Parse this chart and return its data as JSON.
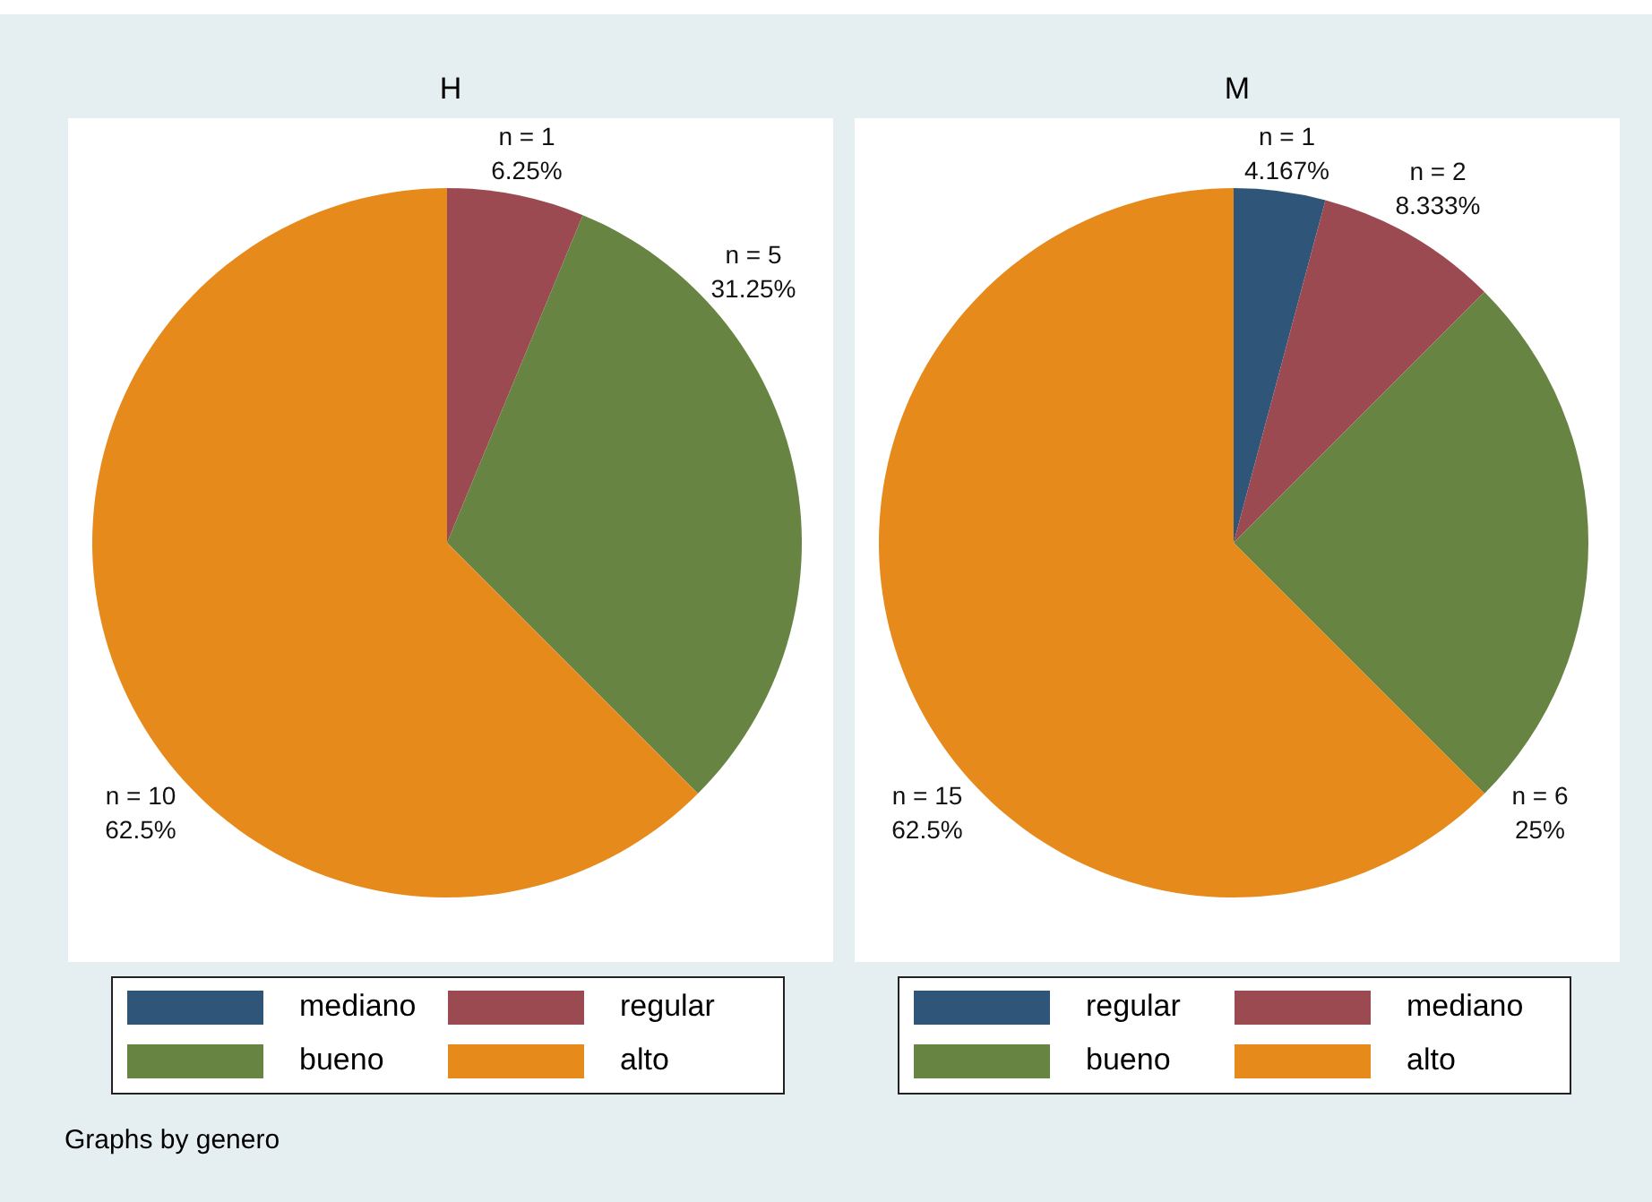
{
  "chart_data": [
    {
      "type": "pie",
      "title": "H",
      "categories": [
        "mediano",
        "regular",
        "bueno",
        "alto"
      ],
      "values": [
        0,
        1,
        5,
        10
      ],
      "colors": [
        "#2f5578",
        "#9c4a51",
        "#678442",
        "#e68a1c"
      ],
      "value_labels": [
        null,
        "n = 1\n6.25%",
        "n = 5\n31.25%",
        "n = 10\n62.5%"
      ],
      "legend": "bottom",
      "annotations": [
        "Graphs by genero"
      ]
    },
    {
      "type": "pie",
      "title": "M",
      "categories": [
        "regular",
        "mediano",
        "bueno",
        "alto"
      ],
      "values": [
        1,
        2,
        6,
        15
      ],
      "colors": [
        "#2f5578",
        "#9c4a51",
        "#678442",
        "#e68a1c"
      ],
      "value_labels": [
        "n = 1\n4.167%",
        "n = 2\n8.333%",
        "n = 6\n25%",
        "n = 15\n62.5%"
      ],
      "legend": "bottom"
    }
  ]
}
